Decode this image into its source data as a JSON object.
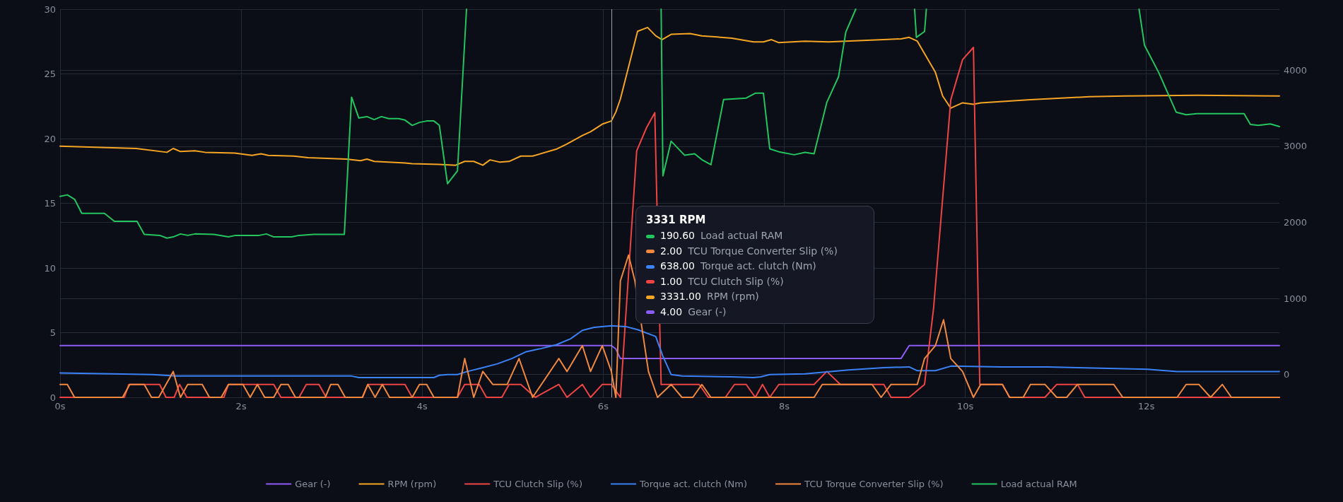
{
  "chart_data": {
    "type": "line",
    "marker": "none",
    "line_style": "solid",
    "grid": true,
    "legend": "bottom",
    "xlim": [
      0,
      13.47
    ],
    "xticks": [
      {
        "value": 0,
        "label": "0s"
      },
      {
        "value": 2,
        "label": "2s"
      },
      {
        "value": 4,
        "label": "4s"
      },
      {
        "value": 6,
        "label": "6s"
      },
      {
        "value": 8,
        "label": "8s"
      },
      {
        "value": 10,
        "label": "10s"
      },
      {
        "value": 12,
        "label": "12s"
      }
    ],
    "ylim": [
      0,
      30
    ],
    "yticks": [
      0,
      5,
      10,
      15,
      20,
      25,
      30
    ],
    "y2lim": [
      -300,
      4800
    ],
    "y2ticks": [
      0,
      1000,
      2000,
      3000,
      4000
    ],
    "ref_lines": [
      {
        "axis": "x",
        "value": 6.09,
        "color": "#9ca3af"
      }
    ],
    "annotations": [
      "3331 RPM",
      "190.60 Load actual RAM",
      "2.00 TCU Torque Converter Slip (%)",
      "638.00 Torque act. clutch (Nm)",
      "1.00 TCU Clutch Slip (%)",
      "3331.00 RPM (rpm)",
      "4.00 Gear (-)"
    ],
    "series": [
      {
        "name": "Gear (-)",
        "color": "#8b5cf6",
        "x": [
          0,
          6.09,
          6.14,
          6.19,
          9.29,
          9.38,
          13.47
        ],
        "values": [
          4,
          4,
          3.74,
          3,
          3,
          4,
          4
        ]
      },
      {
        "name": "RPM (rpm)",
        "color": "#f5a524",
        "axis": "y2",
        "x": [
          0,
          0.84,
          1.18,
          1.25,
          1.33,
          1.49,
          1.6,
          1.93,
          2.12,
          2.22,
          2.3,
          2.58,
          2.74,
          3.16,
          3.32,
          3.39,
          3.47,
          3.81,
          3.89,
          4.18,
          4.37,
          4.47,
          4.57,
          4.67,
          4.75,
          4.86,
          4.96,
          5.09,
          5.22,
          5.48,
          5.6,
          5.77,
          5.86,
          5.99,
          6.09,
          6.14,
          6.19,
          6.28,
          6.38,
          6.49,
          6.58,
          6.65,
          6.75,
          6.96,
          7.09,
          7.42,
          7.66,
          7.77,
          7.86,
          7.94,
          8.23,
          8.49,
          9.1,
          9.29,
          9.38,
          9.47,
          9.67,
          9.75,
          9.84,
          9.97,
          10.09,
          10.17,
          10.72,
          11.37,
          11.76,
          12.56,
          13.47
        ],
        "values": [
          3000,
          2970,
          2920,
          2970,
          2930,
          2940,
          2920,
          2910,
          2880,
          2900,
          2880,
          2870,
          2850,
          2830,
          2810,
          2830,
          2800,
          2780,
          2770,
          2760,
          2750,
          2800,
          2800,
          2750,
          2820,
          2790,
          2800,
          2870,
          2870,
          2960,
          3030,
          3140,
          3190,
          3290,
          3331,
          3450,
          3620,
          4040,
          4510,
          4560,
          4450,
          4400,
          4470,
          4480,
          4450,
          4420,
          4370,
          4370,
          4400,
          4360,
          4380,
          4370,
          4400,
          4410,
          4430,
          4380,
          3970,
          3660,
          3500,
          3570,
          3550,
          3570,
          3610,
          3650,
          3660,
          3670,
          3660
        ]
      },
      {
        "name": "TCU Clutch Slip (%)",
        "color": "#ef4444",
        "x": [
          0,
          0.71,
          0.76,
          1.1,
          1.17,
          1.26,
          1.32,
          1.4,
          1.81,
          1.86,
          2.36,
          2.44,
          2.64,
          2.72,
          2.86,
          2.94,
          3.34,
          3.4,
          3.81,
          3.89,
          4.39,
          4.47,
          4.63,
          4.71,
          4.88,
          4.96,
          5.09,
          5.25,
          5.51,
          5.6,
          5.77,
          5.86,
          5.99,
          6.09,
          6.19,
          6.37,
          6.48,
          6.57,
          6.64,
          7.06,
          7.16,
          7.35,
          7.45,
          7.58,
          7.68,
          7.76,
          7.84,
          7.94,
          8.33,
          8.47,
          8.62,
          9.1,
          9.18,
          9.38,
          9.55,
          9.65,
          9.84,
          9.97,
          10.09,
          10.16,
          10.41,
          10.49,
          10.88,
          11.01,
          11.24,
          11.32,
          13.47
        ],
        "values": [
          0,
          0,
          1,
          1,
          0,
          0,
          1,
          0,
          0,
          1,
          1,
          0,
          0,
          1,
          1,
          0,
          0,
          1,
          1,
          0,
          0,
          1,
          1,
          0,
          0,
          1,
          1,
          0,
          1,
          0,
          1,
          0,
          1,
          1,
          0,
          19.05,
          20.86,
          22,
          1,
          1,
          0,
          0,
          1,
          1,
          0,
          1,
          0,
          1,
          1,
          2,
          1,
          1,
          0,
          0,
          1,
          6.9,
          23,
          26.1,
          27.05,
          1,
          1,
          0,
          0,
          1,
          1,
          0,
          0
        ]
      },
      {
        "name": "Torque act. clutch (Nm)",
        "color": "#3b82f6",
        "axis": "y2",
        "x": [
          0,
          1.02,
          1.28,
          3.22,
          3.3,
          4.13,
          4.19,
          4.28,
          4.39,
          4.5,
          4.67,
          4.83,
          4.99,
          5.15,
          5.31,
          5.48,
          5.64,
          5.77,
          5.9,
          6.09,
          6.25,
          6.38,
          6.58,
          6.66,
          6.75,
          6.87,
          7.42,
          7.66,
          7.74,
          7.84,
          8.23,
          8.71,
          9.1,
          9.38,
          9.47,
          9.67,
          9.84,
          10.4,
          10.91,
          11.24,
          12.01,
          12.34,
          13.47
        ],
        "values": [
          20,
          0,
          -20,
          -20,
          -40,
          -40,
          -10,
          0,
          0,
          40,
          90,
          140,
          210,
          300,
          340,
          390,
          470,
          580,
          620,
          640,
          630,
          590,
          500,
          240,
          0,
          -20,
          -30,
          -40,
          -30,
          0,
          10,
          60,
          90,
          100,
          50,
          50,
          110,
          100,
          100,
          90,
          70,
          40,
          40
        ]
      },
      {
        "name": "TCU Torque Converter Slip (%)",
        "color": "#f0883e",
        "x": [
          0,
          0.08,
          0.16,
          0.69,
          0.77,
          0.93,
          1.01,
          1.09,
          1.25,
          1.33,
          1.41,
          1.57,
          1.65,
          1.78,
          1.86,
          2.02,
          2.1,
          2.18,
          2.26,
          2.36,
          2.44,
          2.52,
          2.6,
          2.93,
          2.99,
          3.07,
          3.15,
          3.34,
          3.4,
          3.48,
          3.56,
          3.64,
          3.89,
          3.97,
          4.05,
          4.13,
          4.39,
          4.47,
          4.57,
          4.67,
          4.78,
          4.94,
          5.07,
          5.22,
          5.51,
          5.6,
          5.77,
          5.86,
          5.99,
          6.09,
          6.14,
          6.19,
          6.28,
          6.35,
          6.5,
          6.6,
          6.75,
          6.87,
          6.99,
          7.09,
          7.19,
          8.33,
          8.42,
          8.68,
          8.97,
          9.07,
          9.18,
          9.47,
          9.55,
          9.67,
          9.76,
          9.84,
          9.97,
          10.09,
          10.17,
          10.41,
          10.49,
          10.64,
          10.72,
          10.88,
          11.01,
          11.12,
          11.24,
          11.64,
          11.74,
          12.34,
          12.44,
          12.58,
          12.71,
          12.84,
          12.94,
          13.47
        ],
        "values": [
          1,
          1,
          0,
          0,
          1,
          1,
          0,
          0,
          2,
          0,
          1,
          1,
          0,
          0,
          1,
          1,
          0,
          1,
          0,
          0,
          1,
          1,
          0,
          0,
          1,
          1,
          0,
          0,
          1,
          0,
          1,
          0,
          0,
          1,
          1,
          0,
          0,
          3,
          0,
          2,
          1,
          1,
          3,
          0,
          3,
          2,
          4,
          2,
          4,
          2,
          0,
          9,
          11,
          9,
          2,
          0,
          1,
          0,
          0,
          1,
          0,
          0,
          1,
          1,
          1,
          0,
          1,
          1,
          3,
          4,
          6,
          3,
          2,
          0,
          1,
          1,
          0,
          0,
          1,
          1,
          0,
          0,
          1,
          1,
          0,
          0,
          1,
          1,
          0,
          1,
          0,
          0
        ]
      },
      {
        "name": "Load actual RAM",
        "color": "#22c55e",
        "x": [
          0,
          0.08,
          0.16,
          0.24,
          0.49,
          0.6,
          0.85,
          0.93,
          1.1,
          1.18,
          1.25,
          1.33,
          1.41,
          1.49,
          1.7,
          1.86,
          1.94,
          2.2,
          2.28,
          2.36,
          2.56,
          2.64,
          2.8,
          3.14,
          3.22,
          3.3,
          3.39,
          3.47,
          3.55,
          3.63,
          3.74,
          3.81,
          3.89,
          3.97,
          4.05,
          4.13,
          4.19,
          4.28,
          4.39,
          4.49,
          5.5,
          6.64,
          6.66,
          6.75,
          6.9,
          7.01,
          7.09,
          7.19,
          7.33,
          7.58,
          7.68,
          7.77,
          7.84,
          7.94,
          8.11,
          8.23,
          8.33,
          8.47,
          8.6,
          8.68,
          8.79,
          9.1,
          9.44,
          9.46,
          9.55,
          9.57,
          10.5,
          11.92,
          11.98,
          12.14,
          12.33,
          12.44,
          12.56,
          13.08,
          13.15,
          13.24,
          13.37,
          13.47
        ],
        "values": [
          15.53,
          15.65,
          15.31,
          14.22,
          14.22,
          13.61,
          13.61,
          12.59,
          12.52,
          12.31,
          12.4,
          12.63,
          12.52,
          12.63,
          12.59,
          12.4,
          12.52,
          12.52,
          12.63,
          12.4,
          12.4,
          12.52,
          12.59,
          12.59,
          23.2,
          21.59,
          21.7,
          21.47,
          21.7,
          21.54,
          21.54,
          21.43,
          21.02,
          21.25,
          21.36,
          21.36,
          21.02,
          16.51,
          17.51,
          30,
          null,
          30,
          17.12,
          19.8,
          18.71,
          18.82,
          18.37,
          17.98,
          23.02,
          23.13,
          23.51,
          23.51,
          19.21,
          18.98,
          18.75,
          18.93,
          18.82,
          22.79,
          24.78,
          28.23,
          30,
          null,
          30,
          27.82,
          28.28,
          30,
          null,
          30,
          27.21,
          25.06,
          22.04,
          21.84,
          21.93,
          21.93,
          21.09,
          21.02,
          21.13,
          20.93
        ]
      }
    ]
  }
}
